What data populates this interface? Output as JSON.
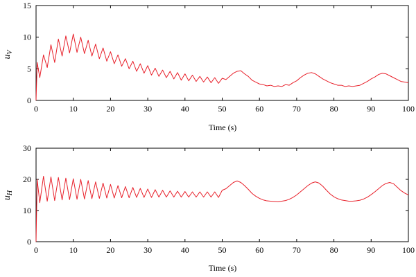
{
  "colors": {
    "series": "#e8202a",
    "axis": "#000000",
    "background": "#ffffff"
  },
  "chart_data": [
    {
      "type": "line",
      "title": "",
      "xlabel": "Time (s)",
      "ylabel_main": "u",
      "ylabel_sub": "V",
      "xlim": [
        0,
        100
      ],
      "ylim": [
        0,
        15
      ],
      "xticks": [
        "0",
        "10",
        "20",
        "30",
        "40",
        "50",
        "60",
        "70",
        "80",
        "90",
        "100"
      ],
      "yticks": [
        "0",
        "5",
        "10",
        "15"
      ],
      "grid": false,
      "legend": "none",
      "series": [
        {
          "color": "#e8202a",
          "x": [
            0,
            0.3,
            1,
            2,
            3,
            4,
            5,
            6,
            7,
            8,
            9,
            10,
            11,
            12,
            13,
            14,
            15,
            16,
            17,
            18,
            19,
            20,
            21,
            22,
            23,
            24,
            25,
            26,
            27,
            28,
            29,
            30,
            31,
            32,
            33,
            34,
            35,
            36,
            37,
            38,
            39,
            40,
            41,
            42,
            43,
            44,
            45,
            46,
            47,
            48,
            49,
            50,
            51,
            52,
            53,
            54,
            55,
            56,
            57,
            58,
            59,
            60,
            61,
            62,
            63,
            64,
            65,
            66,
            67,
            68,
            69,
            70,
            71,
            72,
            73,
            74,
            75,
            76,
            77,
            78,
            79,
            80,
            81,
            82,
            83,
            84,
            85,
            86,
            87,
            88,
            89,
            90,
            91,
            92,
            93,
            94,
            95,
            96,
            97,
            98,
            99,
            100
          ],
          "y": [
            0,
            6.0,
            3.6,
            7.2,
            5.2,
            8.8,
            6.0,
            9.7,
            7.0,
            10.2,
            7.5,
            10.5,
            7.6,
            10.0,
            7.4,
            9.5,
            7.0,
            8.9,
            6.6,
            8.3,
            6.2,
            7.7,
            5.8,
            7.2,
            5.4,
            6.6,
            5.0,
            6.2,
            4.6,
            5.8,
            4.3,
            5.5,
            4.0,
            5.1,
            3.8,
            4.8,
            3.6,
            4.6,
            3.4,
            4.4,
            3.2,
            4.2,
            3.1,
            4.0,
            3.0,
            3.8,
            2.9,
            3.7,
            2.8,
            3.6,
            2.7,
            3.5,
            3.3,
            3.8,
            4.3,
            4.6,
            4.7,
            4.2,
            3.8,
            3.2,
            2.9,
            2.6,
            2.5,
            2.3,
            2.4,
            2.2,
            2.3,
            2.2,
            2.5,
            2.4,
            2.8,
            3.1,
            3.6,
            4.0,
            4.3,
            4.4,
            4.2,
            3.8,
            3.4,
            3.1,
            2.8,
            2.6,
            2.4,
            2.4,
            2.2,
            2.3,
            2.2,
            2.3,
            2.4,
            2.7,
            3.0,
            3.4,
            3.7,
            4.1,
            4.3,
            4.2,
            3.9,
            3.6,
            3.3,
            3.0,
            2.9,
            2.8
          ]
        }
      ]
    },
    {
      "type": "line",
      "title": "",
      "xlabel": "Time (s)",
      "ylabel_main": "u",
      "ylabel_sub": "H",
      "xlim": [
        0,
        100
      ],
      "ylim": [
        0,
        30
      ],
      "xticks": [
        "0",
        "10",
        "20",
        "30",
        "40",
        "50",
        "60",
        "70",
        "80",
        "90",
        "100"
      ],
      "yticks": [
        "0",
        "10",
        "20",
        "30"
      ],
      "grid": false,
      "legend": "none",
      "series": [
        {
          "color": "#e8202a",
          "x": [
            0,
            0.3,
            1,
            2,
            3,
            4,
            5,
            6,
            7,
            8,
            9,
            10,
            11,
            12,
            13,
            14,
            15,
            16,
            17,
            18,
            19,
            20,
            21,
            22,
            23,
            24,
            25,
            26,
            27,
            28,
            29,
            30,
            31,
            32,
            33,
            34,
            35,
            36,
            37,
            38,
            39,
            40,
            41,
            42,
            43,
            44,
            45,
            46,
            47,
            48,
            49,
            50,
            51,
            52,
            53,
            54,
            55,
            56,
            57,
            58,
            59,
            60,
            61,
            62,
            63,
            64,
            65,
            66,
            67,
            68,
            69,
            70,
            71,
            72,
            73,
            74,
            75,
            76,
            77,
            78,
            79,
            80,
            81,
            82,
            83,
            84,
            85,
            86,
            87,
            88,
            89,
            90,
            91,
            92,
            93,
            94,
            95,
            96,
            97,
            98,
            99,
            100
          ],
          "y": [
            0,
            20.0,
            12.5,
            21.0,
            13.0,
            20.8,
            13.2,
            20.6,
            13.4,
            20.4,
            13.5,
            20.2,
            13.6,
            20.0,
            13.7,
            19.6,
            13.8,
            19.2,
            13.9,
            18.8,
            14.0,
            18.4,
            14.0,
            18.0,
            14.1,
            17.7,
            14.1,
            17.4,
            14.2,
            17.1,
            14.2,
            16.9,
            14.2,
            16.7,
            14.3,
            16.5,
            14.3,
            16.3,
            14.3,
            16.2,
            14.3,
            16.1,
            14.3,
            16.0,
            14.3,
            16.0,
            14.3,
            16.0,
            14.3,
            16.0,
            14.2,
            16.5,
            17.0,
            18.0,
            19.0,
            19.5,
            19.0,
            18.0,
            16.8,
            15.5,
            14.6,
            13.9,
            13.4,
            13.1,
            13.0,
            12.9,
            12.8,
            13.0,
            13.2,
            13.6,
            14.2,
            15.0,
            16.0,
            17.0,
            18.0,
            18.8,
            19.2,
            18.8,
            17.8,
            16.5,
            15.3,
            14.4,
            13.8,
            13.4,
            13.2,
            13.0,
            13.0,
            13.1,
            13.3,
            13.7,
            14.3,
            15.1,
            16.0,
            17.0,
            18.0,
            18.7,
            19.0,
            18.6,
            17.5,
            16.4,
            15.6,
            15.0
          ]
        }
      ]
    }
  ]
}
